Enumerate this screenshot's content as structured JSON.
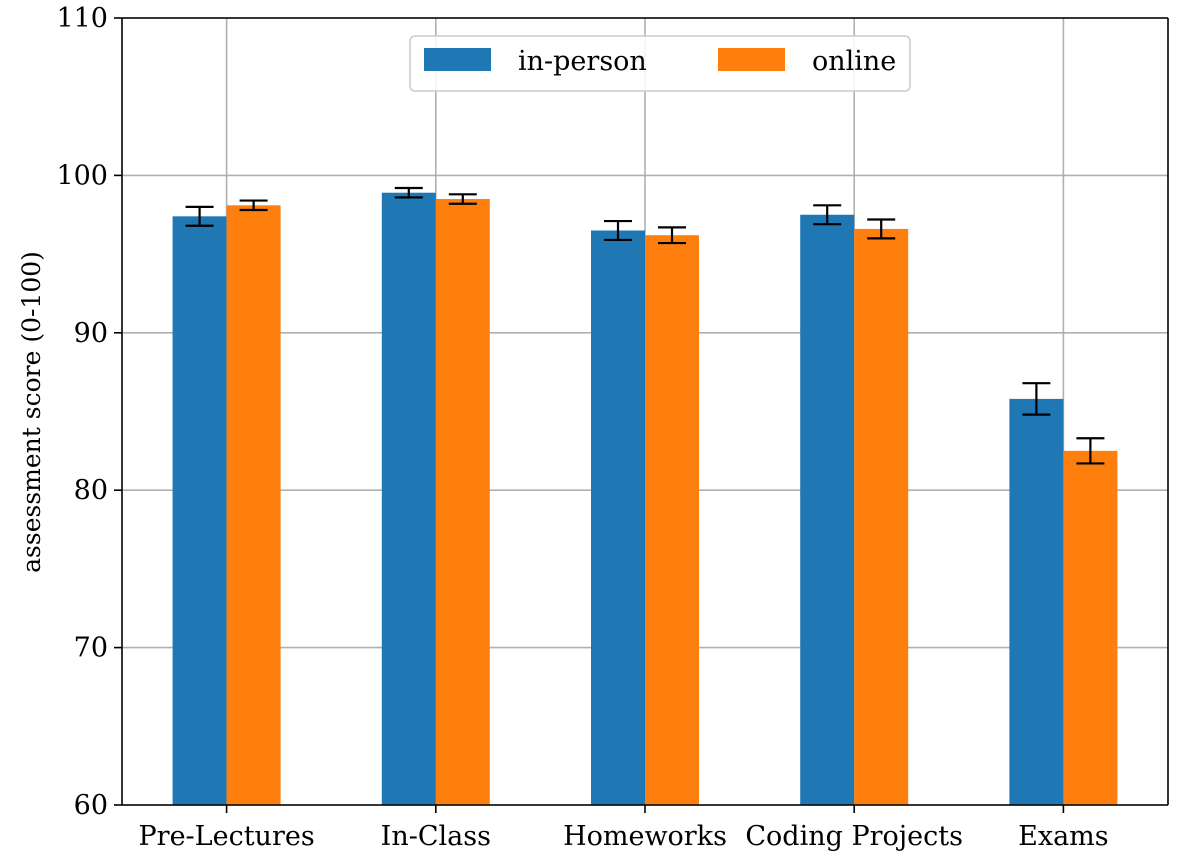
{
  "chart_data": {
    "type": "bar",
    "title": "",
    "xlabel": "",
    "ylabel": "assessment score (0-100)",
    "ylim": [
      60,
      110
    ],
    "yticks": [
      60,
      70,
      80,
      90,
      100,
      110
    ],
    "grid": true,
    "legend_placement": "top-center",
    "categories": [
      "Pre-Lectures",
      "In-Class",
      "Homeworks",
      "Coding Projects",
      "Exams"
    ],
    "series": [
      {
        "name": "in-person",
        "color": "#1f77b4",
        "values": [
          97.4,
          98.9,
          96.5,
          97.5,
          85.8
        ],
        "errors": [
          0.6,
          0.3,
          0.6,
          0.6,
          1.0
        ]
      },
      {
        "name": "online",
        "color": "#ff7f0e",
        "values": [
          98.1,
          98.5,
          96.2,
          96.6,
          82.5
        ],
        "errors": [
          0.3,
          0.3,
          0.5,
          0.6,
          0.8
        ]
      }
    ]
  }
}
